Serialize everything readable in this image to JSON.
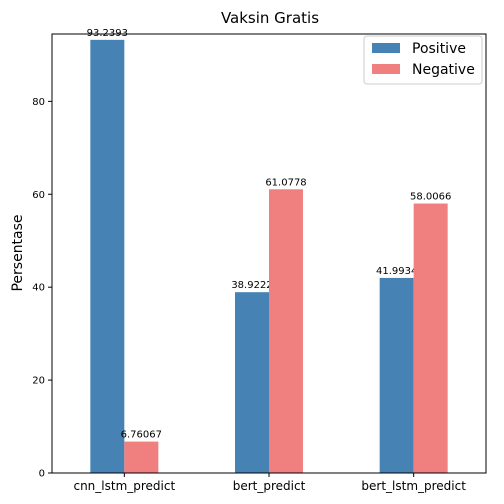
{
  "chart_data": {
    "type": "bar",
    "title": "Vaksin Gratis",
    "xlabel": "",
    "ylabel": "Persentase",
    "categories": [
      "cnn_lstm_predict",
      "bert_predict",
      "bert_lstm_predict"
    ],
    "series": [
      {
        "name": "Positive",
        "values": [
          93.2393,
          38.9222,
          41.9934
        ],
        "labels": [
          "93.2393",
          "38.9222",
          "41.9934"
        ],
        "color": "#4682b4"
      },
      {
        "name": "Negative",
        "values": [
          6.76067,
          61.0778,
          58.0066
        ],
        "labels": [
          "6.76067",
          "61.0778",
          "58.0066"
        ],
        "color": "#f08080"
      }
    ],
    "ylim": [
      0,
      94.5
    ],
    "yticks": [
      0,
      20,
      40,
      60,
      80
    ],
    "grid": false,
    "legend": "top-right"
  }
}
